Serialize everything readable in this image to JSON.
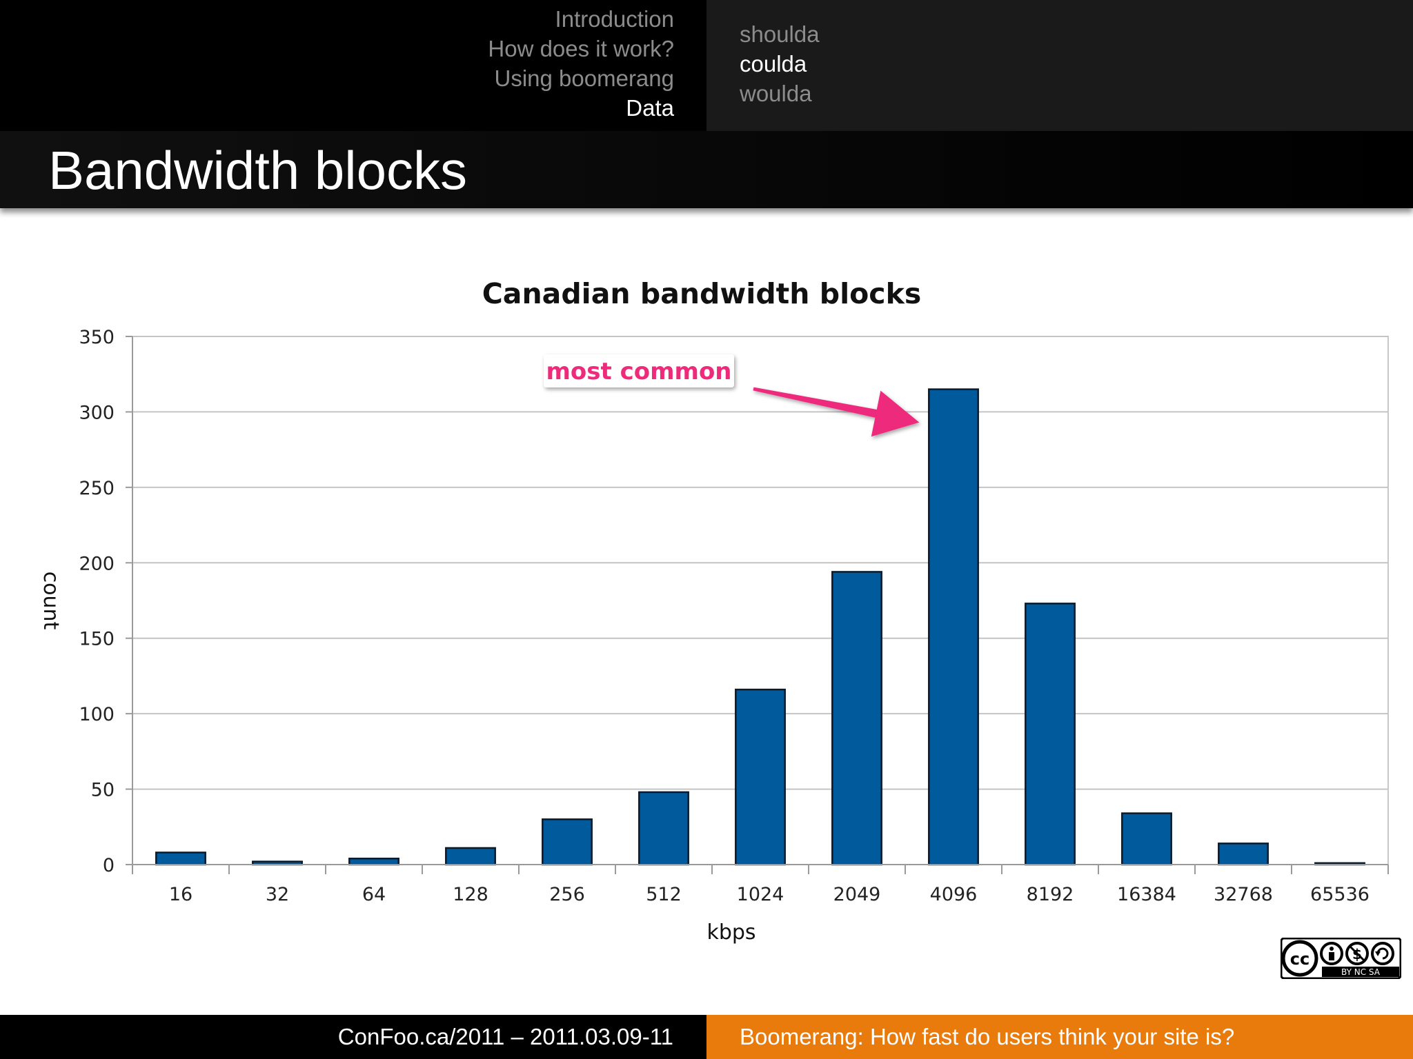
{
  "nav": {
    "sections": [
      {
        "label": "Introduction",
        "active": false
      },
      {
        "label": "How does it work?",
        "active": false
      },
      {
        "label": "Using boomerang",
        "active": false
      },
      {
        "label": "Data",
        "active": true
      }
    ],
    "subsections": [
      {
        "label": "shoulda",
        "active": false
      },
      {
        "label": "coulda",
        "active": true
      },
      {
        "label": "woulda",
        "active": false
      }
    ]
  },
  "slide": {
    "title": "Bandwidth blocks"
  },
  "chart_data": {
    "type": "bar",
    "title": "Canadian bandwidth blocks",
    "xlabel": "kbps",
    "ylabel": "count",
    "categories": [
      "16",
      "32",
      "64",
      "128",
      "256",
      "512",
      "1024",
      "2049",
      "4096",
      "8192",
      "16384",
      "32768",
      "65536"
    ],
    "values": [
      8,
      2,
      4,
      11,
      30,
      48,
      116,
      194,
      315,
      173,
      34,
      14,
      1
    ],
    "ylim": [
      0,
      350
    ],
    "yticks": [
      0,
      50,
      100,
      150,
      200,
      250,
      300,
      350
    ],
    "grid": true,
    "bar_color": "#005a9c",
    "annotation": {
      "text": "most common",
      "color": "#ee2a7b",
      "target_category": "4096"
    }
  },
  "license_badge": {
    "text": "BY NC SA"
  },
  "footer": {
    "conference": "ConFoo.ca/2011 – 2011.03.09-11",
    "talk": "Boomerang: How fast do users think your site is?"
  },
  "colors": {
    "footer_accent": "#e97b0c"
  }
}
